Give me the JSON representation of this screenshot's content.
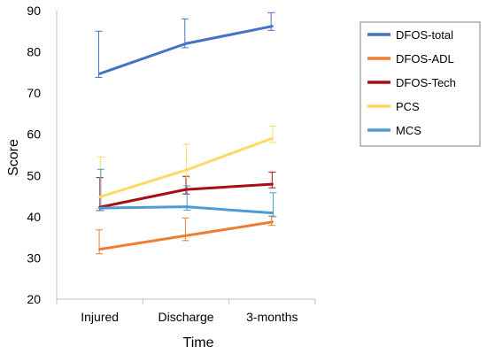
{
  "chart_data": {
    "type": "line",
    "xlabel": "Time",
    "ylabel": "Score",
    "categories": [
      "Injured",
      "Discharge",
      "3-months"
    ],
    "ylim": [
      20,
      90
    ],
    "yticks": [
      20,
      30,
      40,
      50,
      60,
      70,
      80,
      90
    ],
    "legend_position": "right",
    "grid": false,
    "series": [
      {
        "name": "DFOS-total",
        "color": "#4472C4",
        "values": [
          74.7,
          82.0,
          86.2
        ],
        "err_low": [
          73.8,
          81.0,
          85.2
        ],
        "err_high": [
          85.0,
          88.0,
          89.5
        ]
      },
      {
        "name": "DFOS-ADL",
        "color": "#ED7D31",
        "values": [
          32.1,
          35.4,
          38.7
        ],
        "err_low": [
          31.0,
          34.2,
          37.9
        ],
        "err_high": [
          36.8,
          39.7,
          40.2
        ]
      },
      {
        "name": "DFOS-Tech",
        "color": "#A50F15",
        "values": [
          42.3,
          46.6,
          47.9
        ],
        "err_low": [
          41.5,
          45.5,
          47.0
        ],
        "err_high": [
          49.5,
          49.8,
          50.8
        ]
      },
      {
        "name": "PCS",
        "color": "#FFD966",
        "values": [
          44.8,
          51.3,
          59.0
        ],
        "err_low": [
          42.0,
          49.5,
          58.0
        ],
        "err_high": [
          54.5,
          57.6,
          62.0
        ]
      },
      {
        "name": "MCS",
        "color": "#4B9CD3",
        "values": [
          42.1,
          42.4,
          40.9
        ],
        "err_low": [
          41.5,
          41.6,
          40.0
        ],
        "err_high": [
          51.5,
          47.5,
          45.8
        ]
      }
    ]
  }
}
